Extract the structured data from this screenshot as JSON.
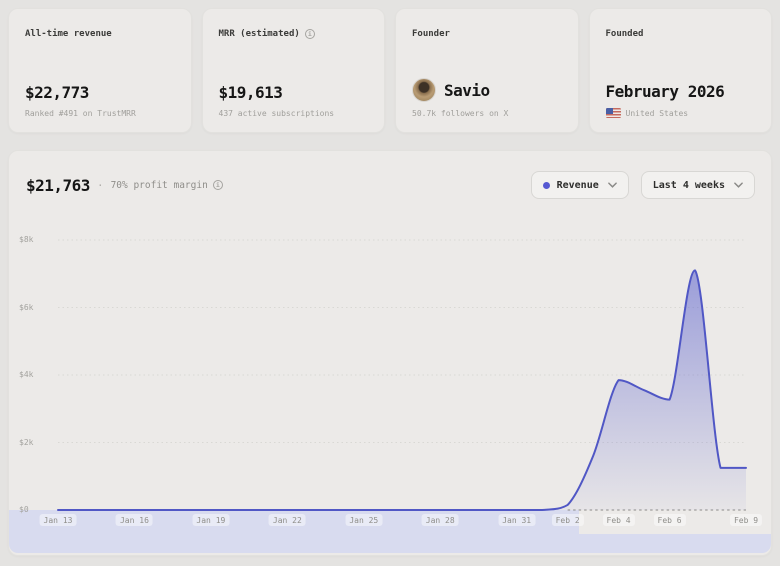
{
  "stat_cards": [
    {
      "label": "All-time revenue",
      "value": "$22,773",
      "sub": "Ranked #491 on TrustMRR"
    },
    {
      "label": "MRR (estimated)",
      "value": "$19,613",
      "sub": "437 active subscriptions"
    },
    {
      "label": "Founder",
      "value": "Savio",
      "sub": "50.7k followers on X"
    },
    {
      "label": "Founded",
      "value": "February 2026",
      "sub": "United States"
    }
  ],
  "chart_card": {
    "value": "$21,763",
    "separator": "·",
    "subtitle": "70% profit margin",
    "series_select": {
      "label": "Revenue"
    },
    "range_select": {
      "label": "Last 4 weeks"
    }
  },
  "icons": {
    "info": "i",
    "chevron_down": "chevron-down",
    "us_flag": "us-flag",
    "x_logo": "X"
  },
  "colors": {
    "page_bg": "#e4e3e1",
    "card_bg": "#eceae8",
    "accent_line": "#5057c5",
    "accent_dot": "#5659d2",
    "area_fill_top": "rgba(88,94,205,0.55)",
    "area_fill_bottom": "rgba(88,94,205,0.04)",
    "grid_dotted": "#d9d8d4",
    "baseline_dash": "#8b8b88",
    "lavender_strip": "#d8dbef"
  },
  "chart_data": {
    "type": "area",
    "title": "$21,763",
    "subtitle": "70% profit margin",
    "legend": "Revenue",
    "range": "Last 4 weeks",
    "x": [
      "Jan 13",
      "Jan 14",
      "Jan 15",
      "Jan 16",
      "Jan 17",
      "Jan 18",
      "Jan 19",
      "Jan 20",
      "Jan 21",
      "Jan 22",
      "Jan 23",
      "Jan 24",
      "Jan 25",
      "Jan 26",
      "Jan 27",
      "Jan 28",
      "Jan 29",
      "Jan 30",
      "Jan 31",
      "Feb 1",
      "Feb 2",
      "Feb 3",
      "Feb 4",
      "Feb 5",
      "Feb 6",
      "Feb 7",
      "Feb 8",
      "Feb 9"
    ],
    "values": [
      0,
      0,
      0,
      0,
      0,
      0,
      0,
      0,
      0,
      0,
      0,
      0,
      0,
      0,
      0,
      0,
      0,
      0,
      0,
      0,
      150,
      1600,
      3850,
      3550,
      3270,
      7100,
      1250,
      1250
    ],
    "x_ticks": [
      {
        "label": "Jan 13",
        "day": 0
      },
      {
        "label": "Jan 16",
        "day": 3
      },
      {
        "label": "Jan 19",
        "day": 6
      },
      {
        "label": "Jan 22",
        "day": 9
      },
      {
        "label": "Jan 25",
        "day": 12
      },
      {
        "label": "Jan 28",
        "day": 15
      },
      {
        "label": "Jan 31",
        "day": 18
      },
      {
        "label": "Feb 2",
        "day": 20
      },
      {
        "label": "Feb 4",
        "day": 22
      },
      {
        "label": "Feb 6",
        "day": 24
      },
      {
        "label": "Feb 9",
        "day": 27
      }
    ],
    "y_ticks": [
      {
        "label": "$0",
        "v": 0
      },
      {
        "label": "$2k",
        "v": 2000
      },
      {
        "label": "$4k",
        "v": 4000
      },
      {
        "label": "$6k",
        "v": 6000
      },
      {
        "label": "$8k",
        "v": 8000
      }
    ],
    "ylim": [
      0,
      8000
    ],
    "grid": "dotted-horizontal",
    "baseline_dash_start_day": 20
  }
}
